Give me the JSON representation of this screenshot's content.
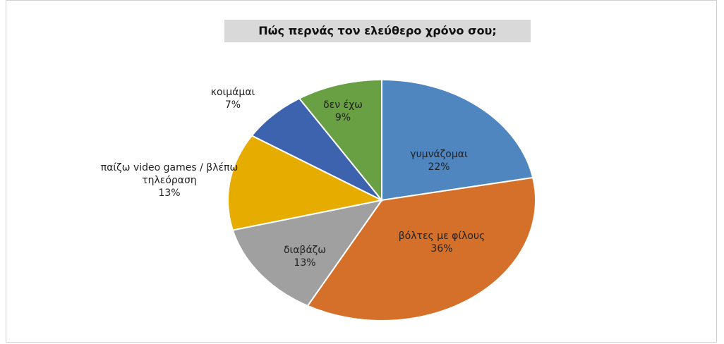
{
  "chart_data": {
    "type": "pie",
    "title": "Πώς περνάς τον ελεύθερο χρόνο σου;",
    "categories": [
      "γυμνάζομαι",
      "βόλτες με φίλους",
      "διαβάζω",
      "παίζω video games / βλέπω τηλεόραση",
      "κοιμάμαι",
      "δεν έχω"
    ],
    "values": [
      22,
      36,
      13,
      13,
      7,
      9
    ],
    "value_labels": [
      "22%",
      "36%",
      "13%",
      "13%",
      "7%",
      "9%"
    ],
    "colors": [
      "#4f86c0",
      "#d4702a",
      "#a0a0a0",
      "#e6ac00",
      "#3d63ae",
      "#68a043"
    ]
  }
}
